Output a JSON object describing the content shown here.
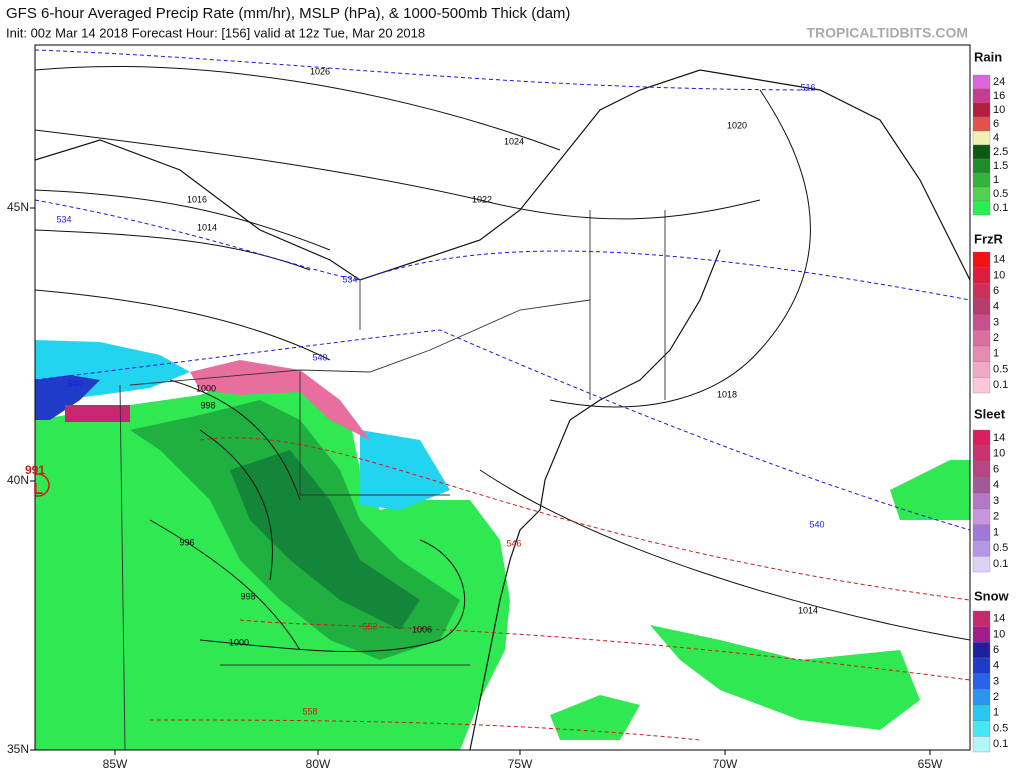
{
  "header": {
    "title": "GFS 6-hour Averaged Precip Rate (mm/hr), MSLP (hPa), & 1000-500mb Thick (dam)",
    "subtitle": "Init: 00z Mar 14 2018   Forecast Hour: [156]   valid at 12z Tue, Mar 20 2018",
    "watermark": "TROPICALTIDBITS.COM"
  },
  "axes": {
    "longitude": [
      "85W",
      "80W",
      "75W",
      "70W",
      "65W"
    ],
    "latitude": [
      "45N",
      "40N",
      "35N"
    ]
  },
  "legend": [
    {
      "title": "Rain",
      "labels": [
        "24",
        "16",
        "10",
        "6",
        "4",
        "2.5",
        "1.5",
        "1",
        "0.5",
        "0.1"
      ]
    },
    {
      "title": "FrzR",
      "labels": [
        "14",
        "10",
        "6",
        "4",
        "3",
        "2",
        "1",
        "0.5",
        "0.1"
      ]
    },
    {
      "title": "Sleet",
      "labels": [
        "14",
        "10",
        "6",
        "4",
        "3",
        "2",
        "1",
        "0.5",
        "0.1"
      ]
    },
    {
      "title": "Snow",
      "labels": [
        "14",
        "10",
        "6",
        "4",
        "3",
        "2",
        "1",
        "0.5",
        "0.1"
      ]
    }
  ],
  "map_labels": {
    "isobars": [
      "1026",
      "1024",
      "1022",
      "1020",
      "1016",
      "1014",
      "1018",
      "1014",
      "1000",
      "998",
      "996",
      "998",
      "1000",
      "1006"
    ],
    "thickness": [
      "516",
      "534",
      "534",
      "540",
      "540",
      "540",
      "546",
      "552",
      "558"
    ],
    "low": {
      "pressure": "991",
      "symbol": "L"
    }
  }
}
